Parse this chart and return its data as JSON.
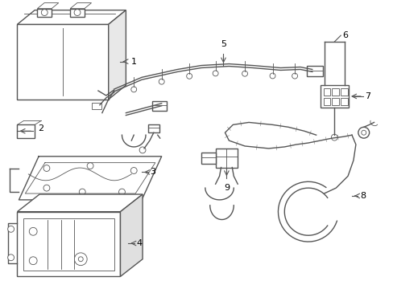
{
  "background_color": "#ffffff",
  "line_color": "#555555",
  "text_color": "#000000",
  "figsize": [
    4.89,
    3.6
  ],
  "dpi": 100
}
